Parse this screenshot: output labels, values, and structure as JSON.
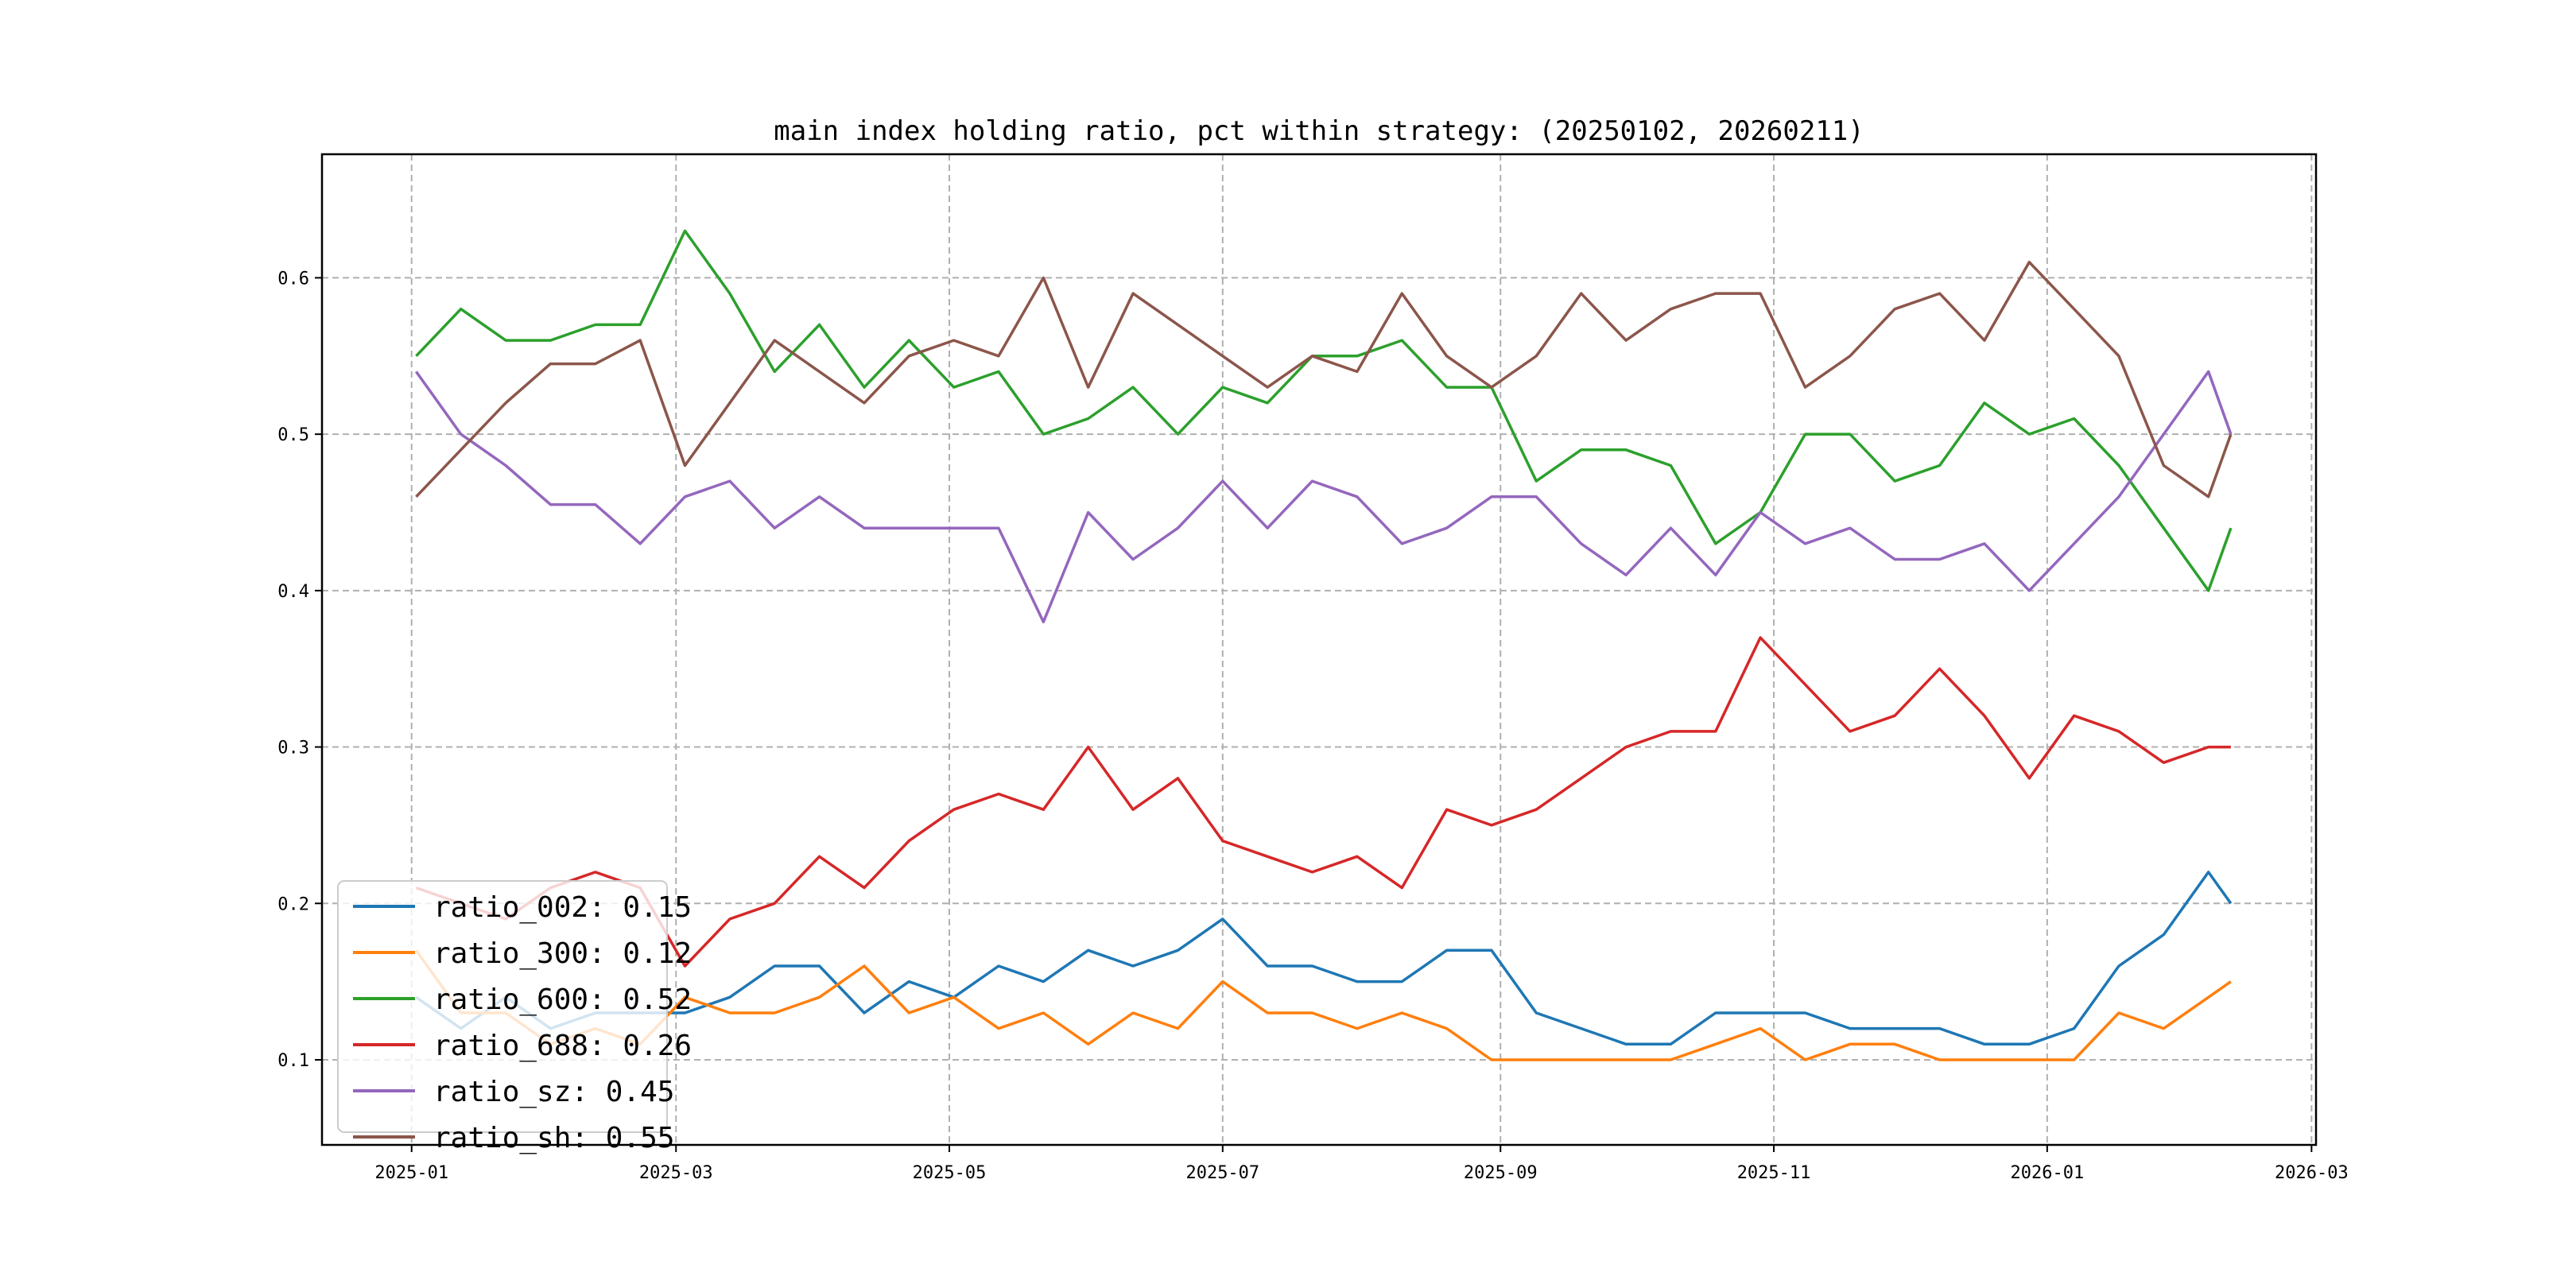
{
  "chart_data": {
    "type": "line",
    "title": "main index holding ratio, pct within strategy: (20250102, 20260211)",
    "xlabel": "",
    "ylabel": "",
    "xlim": [
      "2024-12-12",
      "2026-03-02"
    ],
    "ylim": [
      0.0456,
      0.679
    ],
    "grid": true,
    "legend_position": "lower-left",
    "x_ticks": [
      "2025-01",
      "2025-03",
      "2025-05",
      "2025-07",
      "2025-09",
      "2025-11",
      "2026-01",
      "2026-03"
    ],
    "y_ticks": [
      "0.1",
      "0.2",
      "0.3",
      "0.4",
      "0.5",
      "0.6"
    ],
    "x": [
      "2025-01-02",
      "2025-01-12",
      "2025-01-22",
      "2025-02-01",
      "2025-02-11",
      "2025-02-21",
      "2025-03-03",
      "2025-03-13",
      "2025-03-23",
      "2025-04-02",
      "2025-04-12",
      "2025-04-22",
      "2025-05-02",
      "2025-05-12",
      "2025-05-22",
      "2025-06-01",
      "2025-06-11",
      "2025-06-21",
      "2025-07-01",
      "2025-07-11",
      "2025-07-21",
      "2025-07-31",
      "2025-08-10",
      "2025-08-20",
      "2025-08-30",
      "2025-09-09",
      "2025-09-19",
      "2025-09-29",
      "2025-10-09",
      "2025-10-19",
      "2025-10-29",
      "2025-11-08",
      "2025-11-18",
      "2025-11-28",
      "2025-12-08",
      "2025-12-18",
      "2025-12-28",
      "2026-01-07",
      "2026-01-17",
      "2026-01-27",
      "2026-02-06",
      "2026-02-11"
    ],
    "series": [
      {
        "name": "ratio_002",
        "legend": "ratio_002: 0.15",
        "color": "#1f77b4",
        "values": [
          0.14,
          0.12,
          0.14,
          0.12,
          0.13,
          0.13,
          0.13,
          0.14,
          0.16,
          0.16,
          0.13,
          0.15,
          0.14,
          0.16,
          0.15,
          0.17,
          0.16,
          0.17,
          0.19,
          0.16,
          0.16,
          0.15,
          0.15,
          0.17,
          0.17,
          0.13,
          0.12,
          0.11,
          0.11,
          0.13,
          0.13,
          0.13,
          0.12,
          0.12,
          0.12,
          0.11,
          0.11,
          0.12,
          0.16,
          0.18,
          0.22,
          0.2
        ]
      },
      {
        "name": "ratio_300",
        "legend": "ratio_300: 0.12",
        "color": "#ff7f0e",
        "values": [
          0.17,
          0.13,
          0.13,
          0.11,
          0.12,
          0.11,
          0.14,
          0.13,
          0.13,
          0.14,
          0.16,
          0.13,
          0.14,
          0.12,
          0.13,
          0.11,
          0.13,
          0.12,
          0.15,
          0.13,
          0.13,
          0.12,
          0.13,
          0.12,
          0.1,
          0.1,
          0.1,
          0.1,
          0.1,
          0.11,
          0.12,
          0.1,
          0.11,
          0.11,
          0.1,
          0.1,
          0.1,
          0.1,
          0.13,
          0.12,
          0.14,
          0.15
        ]
      },
      {
        "name": "ratio_600",
        "legend": "ratio_600: 0.52",
        "color": "#2ca02c",
        "values": [
          0.55,
          0.58,
          0.56,
          0.56,
          0.57,
          0.57,
          0.63,
          0.59,
          0.54,
          0.57,
          0.53,
          0.56,
          0.53,
          0.54,
          0.5,
          0.51,
          0.53,
          0.5,
          0.53,
          0.52,
          0.55,
          0.55,
          0.56,
          0.53,
          0.53,
          0.47,
          0.49,
          0.49,
          0.48,
          0.43,
          0.45,
          0.5,
          0.5,
          0.47,
          0.48,
          0.52,
          0.5,
          0.51,
          0.48,
          0.44,
          0.4,
          0.44
        ]
      },
      {
        "name": "ratio_688",
        "legend": "ratio_688: 0.26",
        "color": "#d62728",
        "values": [
          0.21,
          0.2,
          0.19,
          0.21,
          0.22,
          0.21,
          0.16,
          0.19,
          0.2,
          0.23,
          0.21,
          0.24,
          0.26,
          0.27,
          0.26,
          0.3,
          0.26,
          0.28,
          0.24,
          0.23,
          0.22,
          0.23,
          0.21,
          0.26,
          0.25,
          0.26,
          0.28,
          0.3,
          0.31,
          0.31,
          0.37,
          0.34,
          0.31,
          0.32,
          0.35,
          0.32,
          0.28,
          0.32,
          0.31,
          0.29,
          0.3,
          0.3
        ]
      },
      {
        "name": "ratio_sz",
        "legend": "ratio_sz: 0.45",
        "color": "#9467bd",
        "values": [
          0.54,
          0.5,
          0.48,
          0.455,
          0.455,
          0.43,
          0.46,
          0.47,
          0.44,
          0.46,
          0.44,
          0.44,
          0.44,
          0.44,
          0.38,
          0.45,
          0.42,
          0.44,
          0.47,
          0.44,
          0.47,
          0.46,
          0.43,
          0.44,
          0.46,
          0.46,
          0.43,
          0.41,
          0.44,
          0.41,
          0.45,
          0.43,
          0.44,
          0.42,
          0.42,
          0.43,
          0.4,
          0.43,
          0.46,
          0.5,
          0.54,
          0.5
        ]
      },
      {
        "name": "ratio_sh",
        "legend": "ratio_sh: 0.55",
        "color": "#8c564b",
        "values": [
          0.46,
          0.49,
          0.52,
          0.545,
          0.545,
          0.56,
          0.48,
          0.52,
          0.56,
          0.54,
          0.52,
          0.55,
          0.56,
          0.55,
          0.6,
          0.53,
          0.59,
          0.57,
          0.55,
          0.53,
          0.55,
          0.54,
          0.59,
          0.55,
          0.53,
          0.55,
          0.59,
          0.56,
          0.58,
          0.59,
          0.59,
          0.53,
          0.55,
          0.58,
          0.59,
          0.56,
          0.61,
          0.58,
          0.55,
          0.48,
          0.46,
          0.5
        ]
      }
    ]
  }
}
